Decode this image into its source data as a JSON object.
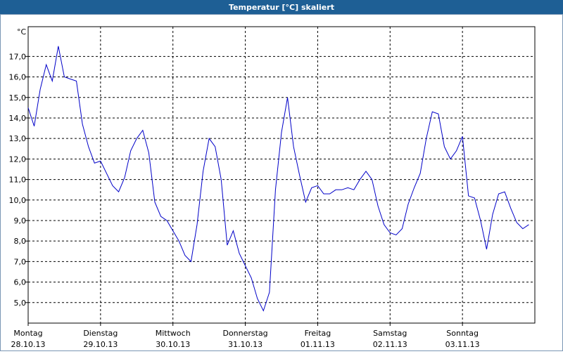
{
  "chart_data": {
    "type": "line",
    "title": "Temperatur [°C] skaliert",
    "y_label": "°C",
    "x": [
      0,
      2,
      4,
      6,
      8,
      10,
      12,
      14,
      16,
      18,
      20,
      22,
      24,
      26,
      28,
      30,
      32,
      34,
      36,
      38,
      40,
      42,
      44,
      46,
      48,
      50,
      52,
      54,
      56,
      58,
      60,
      62,
      64,
      66,
      68,
      70,
      72,
      74,
      76,
      78,
      80,
      82,
      84,
      86,
      88,
      90,
      92,
      94,
      96,
      98,
      100,
      102,
      104,
      106,
      108,
      110,
      112,
      114,
      116,
      118,
      120,
      122,
      124,
      126,
      128,
      130,
      132,
      134,
      136,
      138,
      140,
      142,
      144,
      146,
      148,
      150,
      152,
      154,
      156,
      158,
      160,
      162,
      164,
      166
    ],
    "series": [
      {
        "name": "Temperatur",
        "color": "#0000c8",
        "values": [
          14.5,
          13.6,
          15.4,
          16.6,
          15.8,
          17.5,
          16.0,
          15.9,
          15.8,
          13.7,
          12.6,
          11.8,
          11.9,
          11.3,
          10.7,
          10.4,
          11.1,
          12.4,
          13.0,
          13.4,
          12.3,
          9.9,
          9.2,
          9.0,
          8.5,
          8.0,
          7.3,
          7.0,
          8.8,
          11.4,
          13.0,
          12.6,
          11.0,
          7.8,
          8.5,
          7.4,
          6.8,
          6.2,
          5.2,
          4.6,
          5.5,
          10.5,
          13.3,
          15.0,
          12.6,
          11.2,
          9.9,
          10.6,
          10.7,
          10.3,
          10.3,
          10.5,
          10.5,
          10.6,
          10.5,
          11.0,
          11.4,
          11.0,
          9.7,
          8.8,
          8.4,
          8.3,
          8.6,
          9.8,
          10.6,
          11.3,
          13.0,
          14.3,
          14.2,
          12.6,
          12.0,
          12.4,
          13.1,
          10.2,
          10.1,
          9.0,
          7.6,
          9.3,
          10.3,
          10.4,
          9.6,
          8.9,
          8.6,
          8.8
        ]
      }
    ],
    "xlim": [
      0,
      168
    ],
    "xticks": [
      {
        "value": 0,
        "label": "Montag"
      },
      {
        "value": 24,
        "label": "Dienstag"
      },
      {
        "value": 48,
        "label": "Mittwoch"
      },
      {
        "value": 72,
        "label": "Donnerstag"
      },
      {
        "value": 96,
        "label": "Freitag"
      },
      {
        "value": 120,
        "label": "Samstag"
      },
      {
        "value": 144,
        "label": "Sonntag"
      }
    ],
    "xtick_dates": [
      "28.10.13",
      "29.10.13",
      "30.10.13",
      "31.10.13",
      "01.11.13",
      "02.11.13",
      "03.11.13"
    ],
    "ylim": [
      4.0,
      18.45
    ],
    "yticks": [
      {
        "value": 5,
        "label": "5,0"
      },
      {
        "value": 6,
        "label": "6,0"
      },
      {
        "value": 7,
        "label": "7,0"
      },
      {
        "value": 8,
        "label": "8,0"
      },
      {
        "value": 9,
        "label": "9,0"
      },
      {
        "value": 10,
        "label": "10,0"
      },
      {
        "value": 11,
        "label": "11,0"
      },
      {
        "value": 12,
        "label": "12,0"
      },
      {
        "value": 13,
        "label": "13,0"
      },
      {
        "value": 14,
        "label": "14,0"
      },
      {
        "value": 15,
        "label": "15,0"
      },
      {
        "value": 16,
        "label": "16,0"
      },
      {
        "value": 17,
        "label": "17,0"
      }
    ],
    "grid": true
  }
}
